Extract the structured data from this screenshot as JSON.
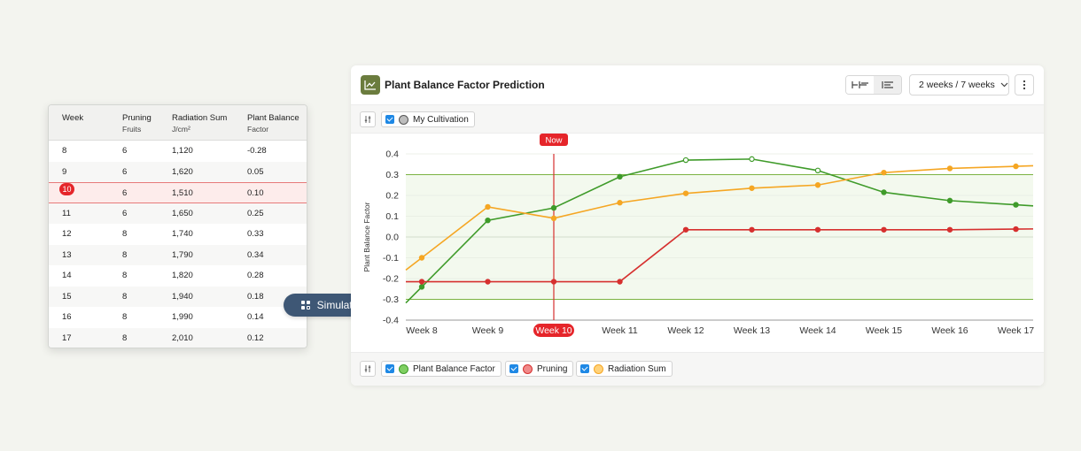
{
  "table": {
    "headers": [
      {
        "title": "Week",
        "sub": ""
      },
      {
        "title": "Pruning",
        "sub": "Fruits"
      },
      {
        "title": "Radiation Sum",
        "sub": "J/cm²"
      },
      {
        "title": "Plant Balance",
        "sub": "Factor"
      }
    ],
    "rows": [
      [
        "8",
        "6",
        "1,120",
        "-0.28"
      ],
      [
        "9",
        "6",
        "1,620",
        "0.05"
      ],
      [
        "10",
        "6",
        "1,510",
        "0.10"
      ],
      [
        "11",
        "6",
        "1,650",
        "0.25"
      ],
      [
        "12",
        "8",
        "1,740",
        "0.33"
      ],
      [
        "13",
        "8",
        "1,790",
        "0.34"
      ],
      [
        "14",
        "8",
        "1,820",
        "0.28"
      ],
      [
        "15",
        "8",
        "1,940",
        "0.18"
      ],
      [
        "16",
        "8",
        "1,990",
        "0.14"
      ],
      [
        "17",
        "8",
        "2,010",
        "0.12"
      ]
    ],
    "current_row_index": 2
  },
  "simulate": {
    "label": "Simulate",
    "icon": "grid-plus-icon"
  },
  "chart_card": {
    "title": "Plant Balance Factor Prediction",
    "range_label": "2 weeks / 7 weeks",
    "filter": {
      "label": "My Cultivation"
    },
    "legend": [
      {
        "label": "Plant Balance Factor",
        "color": "#3f9b2a",
        "fill": "#7fcf62"
      },
      {
        "label": "Pruning",
        "color": "#d6302f",
        "fill": "#f08a8a"
      },
      {
        "label": "Radiation Sum",
        "color": "#f5a623",
        "fill": "#ffd27a"
      }
    ]
  },
  "chart_data": {
    "type": "line",
    "ylabel": "Plant Balance Factor",
    "xlabel": "",
    "ylim": [
      -0.4,
      0.4
    ],
    "yticks": [
      "0.4",
      "0.3",
      "0.2",
      "0.1",
      "0.0",
      "-0.1",
      "-0.2",
      "-0.3",
      "-0.4"
    ],
    "categories": [
      "Week 8",
      "Week 9",
      "Week 10",
      "Week 11",
      "Week 12",
      "Week 13",
      "Week 14",
      "Week 15",
      "Week 16",
      "Week 17"
    ],
    "now_marker": {
      "label": "Now",
      "category": "Week 10"
    },
    "reference_band": {
      "upper": 0.3,
      "lower": -0.3
    },
    "series": [
      {
        "name": "Plant Balance Factor",
        "color": "#3f9b2a",
        "values": [
          -0.24,
          0.08,
          0.14,
          0.29,
          0.37,
          0.375,
          0.32,
          0.215,
          0.175,
          0.155
        ]
      },
      {
        "name": "Radiation Sum",
        "color": "#f5a623",
        "values": [
          -0.1,
          0.145,
          0.09,
          0.165,
          0.21,
          0.235,
          0.25,
          0.31,
          0.33,
          0.34
        ]
      },
      {
        "name": "Pruning",
        "color": "#d6302f",
        "values": [
          -0.215,
          -0.215,
          -0.215,
          -0.215,
          0.035,
          0.035,
          0.035,
          0.035,
          0.035,
          0.038
        ]
      }
    ]
  }
}
